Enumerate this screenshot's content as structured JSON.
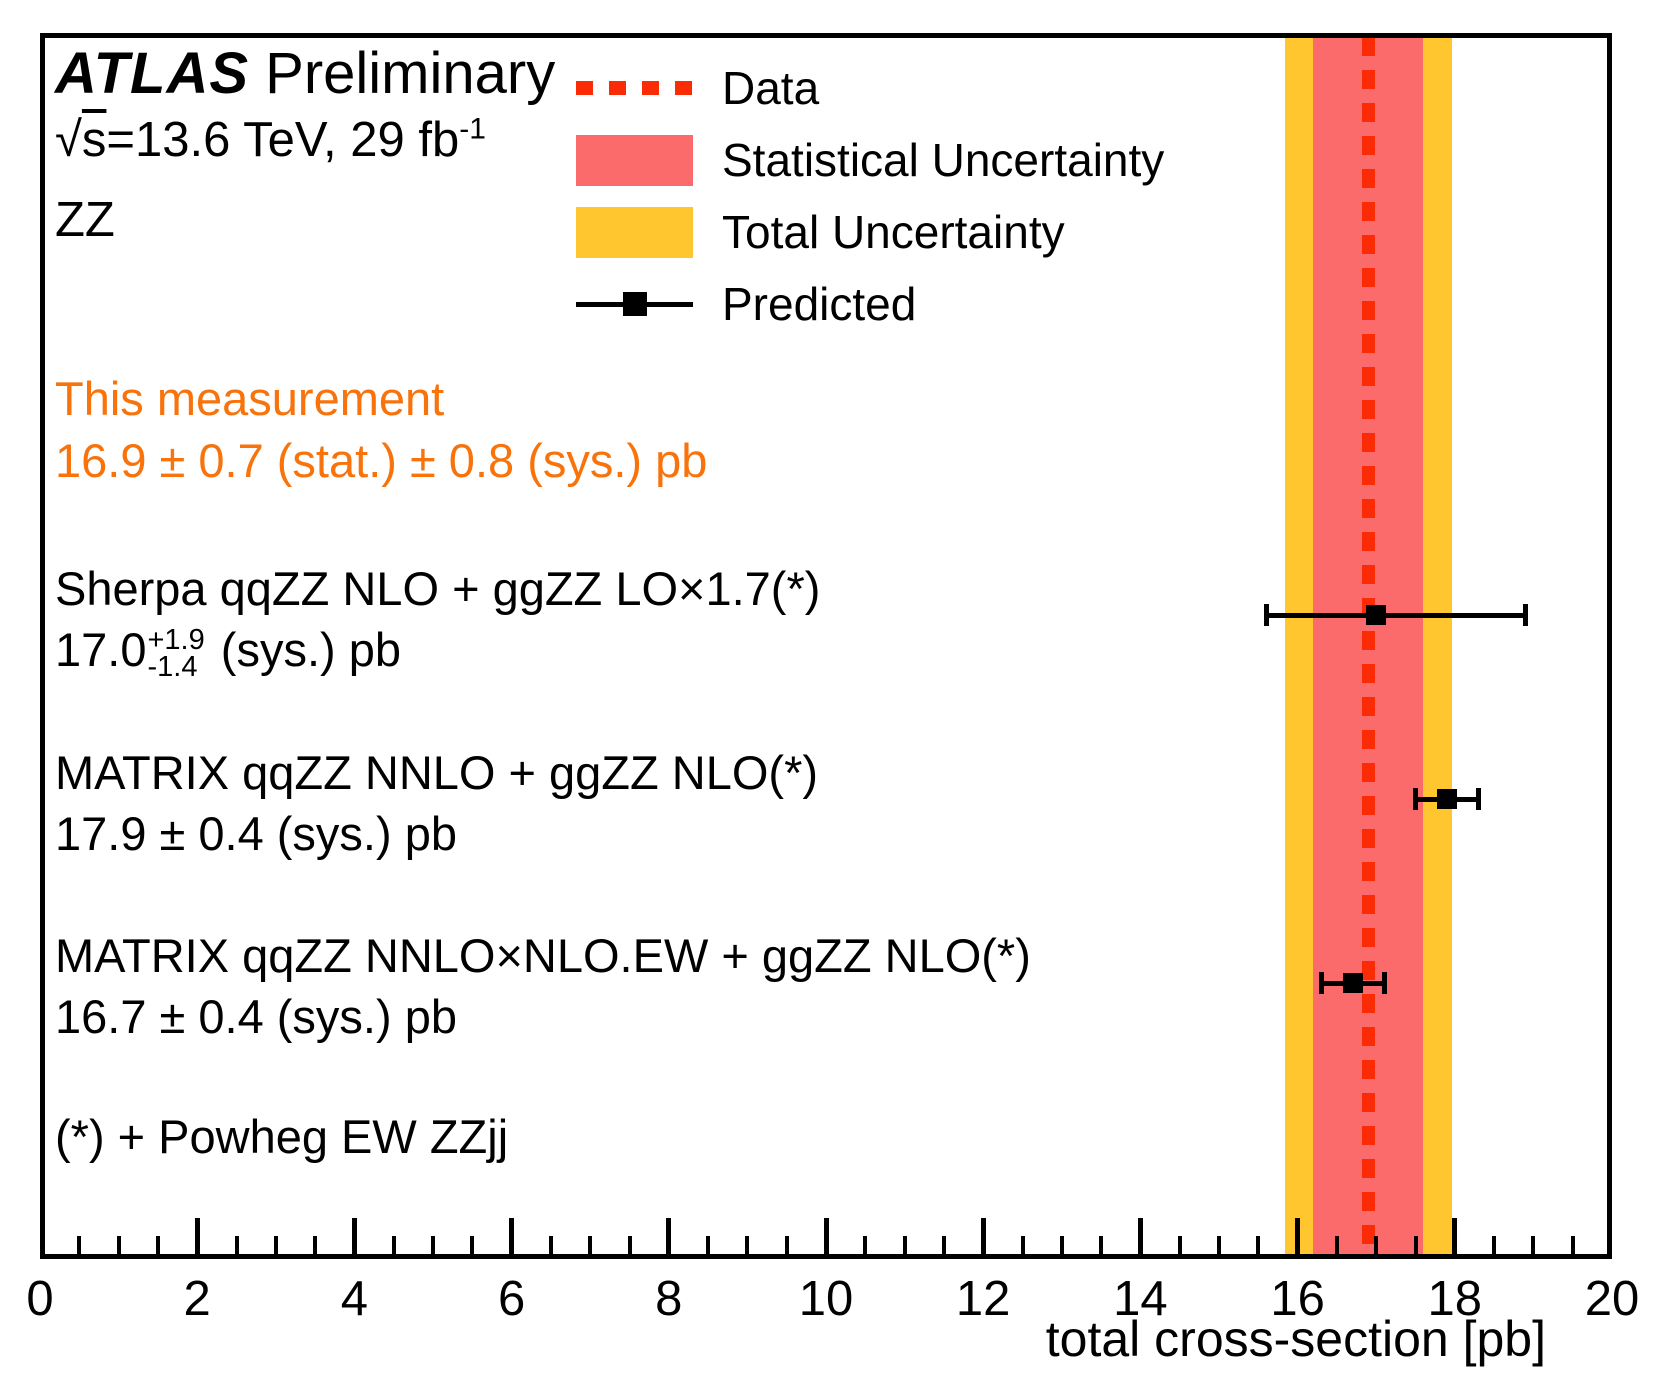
{
  "header": {
    "experiment": "ATLAS",
    "status": "Preliminary",
    "sqrt_sign": "√",
    "sqrt_symbol": "s",
    "conditions": "=13.6 TeV, 29 fb",
    "lumi_exponent": "-1",
    "channel": "ZZ"
  },
  "legend": [
    {
      "label": "Data",
      "swatch": "dashed-red-line"
    },
    {
      "label": "Statistical Uncertainty",
      "swatch": "red-box"
    },
    {
      "label": "Total Uncertainty",
      "swatch": "yellow-box"
    },
    {
      "label": "Predicted",
      "swatch": "black-line-square-marker"
    }
  ],
  "measurement_text": {
    "title": "This measurement",
    "value": "16.9 ± 0.7 (stat.) ± 0.8 (sys.) pb"
  },
  "footnote": "(*) + Powheg EW ZZjj",
  "axis": {
    "title": "total cross-section [pb]"
  },
  "colors": {
    "data_line_red": "#fa2b05",
    "stat_band_red": "#fb6b6b",
    "total_band_yellow": "#ffc62f",
    "measurement_orange": "#f8730b",
    "black": "#000000"
  },
  "chart_data": {
    "type": "scatter",
    "title": "ATLAS Preliminary ZZ total cross-section comparison",
    "xlabel": "total cross-section [pb]",
    "xlim": [
      0,
      20
    ],
    "x_major_ticks": [
      0,
      2,
      4,
      6,
      8,
      10,
      12,
      14,
      16,
      18,
      20
    ],
    "x_minor_step": 0.5,
    "grid": false,
    "legend_position": "top-left",
    "measurement": {
      "value": 16.9,
      "stat_uncertainty": 0.7,
      "sys_uncertainty": 0.8,
      "stat_band": [
        16.2,
        17.6
      ],
      "total_band": [
        15.84,
        17.96
      ]
    },
    "predictions": [
      {
        "name": "Sherpa qqZZ NLO + ggZZ LO×1.7(*)",
        "value": 17.0,
        "err_plus": 1.9,
        "err_minus": 1.4,
        "value_pre": "17.0",
        "value_sup": "+1.9",
        "value_sub": "-1.4",
        "value_post": " (sys.) pb"
      },
      {
        "name": "MATRIX qqZZ NNLO + ggZZ NLO(*)",
        "value": 17.9,
        "err_plus": 0.4,
        "err_minus": 0.4,
        "value_pre": "17.9 ± 0.4 (sys.) pb",
        "value_sup": "",
        "value_sub": "",
        "value_post": ""
      },
      {
        "name": "MATRIX qqZZ NNLO×NLO.EW + ggZZ NLO(*)",
        "value": 16.7,
        "err_plus": 0.4,
        "err_minus": 0.4,
        "value_pre": "16.7 ± 0.4 (sys.) pb",
        "value_sup": "",
        "value_sub": "",
        "value_post": ""
      }
    ]
  }
}
